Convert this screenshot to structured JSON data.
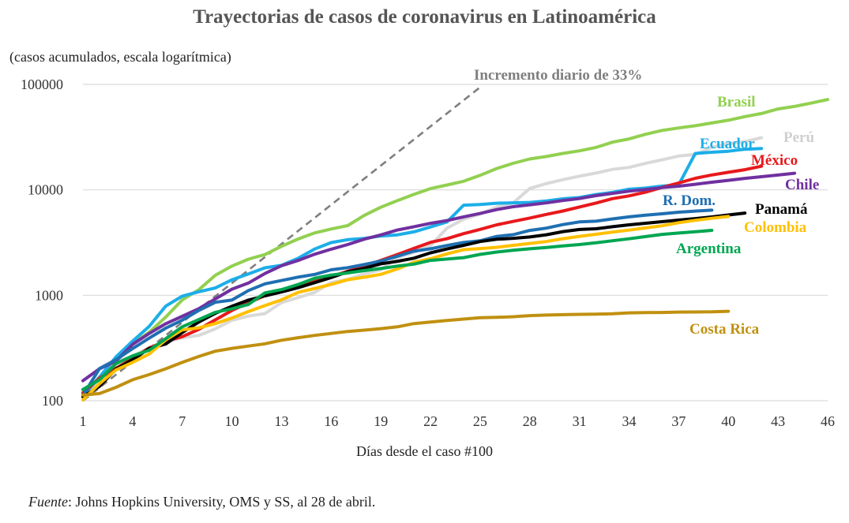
{
  "title": "Trayectorias de casos de coronavirus en Latinoamérica",
  "subtitle": "(casos acumulados, escala logarítmica)",
  "xlabel": "Días desde el caso #100",
  "source": {
    "italic": "Fuente",
    "rest": ": Johns Hopkins University, OMS y SS, al 28 de abril."
  },
  "chart_data": {
    "type": "line",
    "title": "Trayectorias de casos de coronavirus en Latinoamérica",
    "subtitle": "(casos acumulados, escala logarítmica)",
    "xlabel": "Días desde el caso #100",
    "ylabel": "",
    "yscale": "log",
    "xlim": [
      1,
      46
    ],
    "ylim": [
      100,
      100000
    ],
    "grid": "horizontal",
    "legend": "labels at line ends",
    "x_ticks": [
      1,
      4,
      7,
      10,
      13,
      16,
      19,
      22,
      25,
      28,
      31,
      34,
      37,
      40,
      43,
      46
    ],
    "y_ticks": [
      100,
      1000,
      10000,
      100000
    ],
    "y_tick_labels": [
      "100",
      "1000",
      "10000",
      "100000"
    ],
    "reference_line": {
      "label": "Incremento diario de 33%",
      "color": "#7f7f7f",
      "points": [
        [
          1,
          100
        ],
        [
          25,
          94000
        ]
      ]
    },
    "series": [
      {
        "name": "Brasil",
        "color": "#92d050",
        "x_start": 1,
        "values": [
          121,
          160,
          234,
          346,
          446,
          621,
          904,
          1128,
          1546,
          1891,
          2201,
          2433,
          2915,
          3417,
          3904,
          4256,
          4579,
          5717,
          6836,
          7910,
          9056,
          10278,
          11130,
          12056,
          13717,
          15927,
          17857,
          19638,
          20727,
          22169,
          23430,
          25262,
          28320,
          30425,
          33682,
          36599,
          38654,
          40581,
          43079,
          45757,
          49492,
          52995,
          58509,
          61888,
          66501,
          71886
        ]
      },
      {
        "name": "Perú",
        "color": "#d9d9d9",
        "x_start": 1,
        "values": [
          117,
          145,
          234,
          263,
          318,
          363,
          395,
          416,
          480,
          580,
          635,
          671,
          852,
          950,
          1065,
          1323,
          1414,
          1595,
          1746,
          2281,
          2561,
          2954,
          4342,
          5256,
          5897,
          6848,
          7519,
          10303,
          11475,
          12491,
          13489,
          14420,
          15628,
          16325,
          17837,
          19250,
          20914,
          21648,
          25331,
          27517,
          28699,
          31190
        ]
      },
      {
        "name": "Ecuador",
        "color": "#1caee8",
        "x_start": 1,
        "values": [
          111,
          168,
          260,
          367,
          506,
          789,
          981,
          1082,
          1173,
          1403,
          1595,
          1823,
          1924,
          2240,
          2748,
          3163,
          3368,
          3465,
          3646,
          3747,
          3995,
          4450,
          4965,
          7161,
          7257,
          7466,
          7529,
          7603,
          7858,
          8225,
          8450,
          9022,
          9468,
          10128,
          10398,
          10850,
          11183,
          22160,
          22719,
          23240,
          24258,
          24675
        ]
      },
      {
        "name": "México",
        "color": "#e8191c",
        "x_start": 1,
        "values": [
          118,
          164,
          203,
          251,
          316,
          367,
          405,
          475,
          585,
          717,
          848,
          993,
          1094,
          1215,
          1378,
          1510,
          1688,
          1890,
          2143,
          2439,
          2785,
          3181,
          3441,
          3844,
          4219,
          4661,
          5014,
          5399,
          5847,
          6297,
          6875,
          7497,
          8261,
          8772,
          9501,
          10544,
          11633,
          12872,
          13842,
          14677,
          15529,
          16752
        ]
      },
      {
        "name": "Chile",
        "color": "#7030a0",
        "x_start": 1,
        "values": [
          155,
          201,
          238,
          342,
          434,
          537,
          632,
          746,
          922,
          1142,
          1306,
          1610,
          1909,
          2139,
          2449,
          2738,
          3031,
          3404,
          3737,
          4161,
          4471,
          4815,
          5116,
          5546,
          5972,
          6501,
          6927,
          7213,
          7525,
          7917,
          8273,
          8807,
          9252,
          9730,
          10088,
          10507,
          10832,
          11296,
          11812,
          12306,
          12858,
          13331,
          13813,
          14365
        ]
      },
      {
        "name": "R. Dom.",
        "color": "#1f6fb2",
        "x_start": 1,
        "values": [
          112,
          202,
          245,
          312,
          392,
          488,
          581,
          719,
          859,
          901,
          1109,
          1284,
          1380,
          1488,
          1578,
          1745,
          1828,
          1956,
          2111,
          2349,
          2620,
          2759,
          2967,
          3167,
          3286,
          3614,
          3755,
          4126,
          4335,
          4680,
          4964,
          5044,
          5300,
          5543,
          5749,
          5926,
          6135,
          6293,
          6416
        ]
      },
      {
        "name": "Panamá",
        "color": "#000000",
        "x_start": 1,
        "values": [
          109,
          137,
          200,
          245,
          313,
          345,
          443,
          558,
          674,
          786,
          901,
          989,
          1075,
          1181,
          1317,
          1475,
          1673,
          1801,
          1988,
          2100,
          2249,
          2528,
          2752,
          2974,
          3234,
          3400,
          3472,
          3574,
          3751,
          4016,
          4210,
          4273,
          4467,
          4658,
          4821,
          4992,
          5166,
          5338,
          5538,
          5779,
          6021
        ]
      },
      {
        "name": "Colombia",
        "color": "#ffc000",
        "x_start": 1,
        "values": [
          102,
          145,
          196,
          231,
          277,
          378,
          470,
          491,
          539,
          608,
          702,
          798,
          906,
          1065,
          1161,
          1267,
          1406,
          1485,
          1579,
          1780,
          2054,
          2223,
          2473,
          2709,
          2776,
          2852,
          2979,
          3105,
          3233,
          3439,
          3621,
          3792,
          3977,
          4149,
          4356,
          4561,
          4881,
          5142,
          5379,
          5597
        ]
      },
      {
        "name": "Argentina",
        "color": "#00a651",
        "x_start": 1,
        "values": [
          128,
          158,
          225,
          266,
          301,
          387,
          502,
          589,
          690,
          745,
          820,
          1054,
          1133,
          1265,
          1451,
          1554,
          1628,
          1715,
          1795,
          1894,
          1975,
          2142,
          2208,
          2277,
          2443,
          2571,
          2669,
          2758,
          2839,
          2941,
          3031,
          3144,
          3288,
          3435,
          3607,
          3780,
          3892,
          4003,
          4127
        ]
      },
      {
        "name": "Costa Rica",
        "color": "#c09010",
        "x_start": 1,
        "values": [
          113,
          117,
          134,
          158,
          177,
          201,
          231,
          263,
          295,
          314,
          330,
          347,
          375,
          396,
          416,
          435,
          454,
          467,
          483,
          502,
          539,
          558,
          577,
          595,
          612,
          618,
          626,
          642,
          649,
          655,
          660,
          662,
          669,
          681,
          686,
          687,
          693,
          695,
          697,
          705
        ]
      }
    ]
  }
}
